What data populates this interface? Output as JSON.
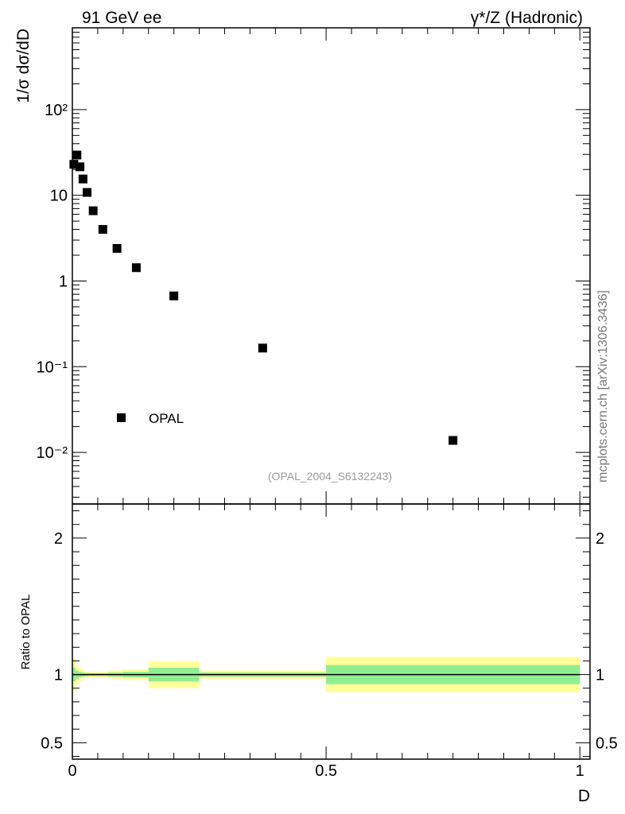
{
  "header": {
    "left_title": "91 GeV ee",
    "right_title": "γ*/Z (Hadronic)"
  },
  "side_label": "mcplots.cern.ch [arXiv:1306.3436]",
  "chart_data": {
    "type": "scatter",
    "main": {
      "ylabel": "1/σ dσ/dD",
      "yscale": "log",
      "ylim": [
        0.0025,
        900
      ],
      "xlim": [
        0,
        1.02
      ],
      "ytick_labels": [
        "10⁻²",
        "10⁻¹",
        "1",
        "10",
        "10²"
      ],
      "analysis_label": "(OPAL_2004_S6132243)",
      "series": [
        {
          "name": "OPAL",
          "marker": "square",
          "x": [
            0.003,
            0.009,
            0.015,
            0.021,
            0.029,
            0.041,
            0.06,
            0.088,
            0.126,
            0.2,
            0.375,
            0.75
          ],
          "y": [
            23.0,
            29.5,
            21.5,
            15.5,
            10.8,
            6.6,
            4.0,
            2.4,
            1.43,
            0.67,
            0.165,
            0.0138
          ]
        }
      ]
    },
    "ratio": {
      "ylabel": "Ratio to OPAL",
      "ylim": [
        0.38,
        2.25
      ],
      "yticks": [
        0.5,
        1,
        2
      ],
      "ytick_labels": [
        "0.5",
        "1",
        "2"
      ],
      "reference_line": 1,
      "bands": {
        "bins": [
          {
            "x0": 0.0,
            "x1": 0.006,
            "inner": 0.05,
            "outer": 0.12
          },
          {
            "x0": 0.006,
            "x1": 0.012,
            "inner": 0.03,
            "outer": 0.07
          },
          {
            "x0": 0.012,
            "x1": 0.018,
            "inner": 0.02,
            "outer": 0.05
          },
          {
            "x0": 0.018,
            "x1": 0.024,
            "inner": 0.015,
            "outer": 0.03
          },
          {
            "x0": 0.024,
            "x1": 0.034,
            "inner": 0.012,
            "outer": 0.025
          },
          {
            "x0": 0.034,
            "x1": 0.048,
            "inner": 0.01,
            "outer": 0.02
          },
          {
            "x0": 0.048,
            "x1": 0.07,
            "inner": 0.01,
            "outer": 0.02
          },
          {
            "x0": 0.07,
            "x1": 0.1,
            "inner": 0.015,
            "outer": 0.03
          },
          {
            "x0": 0.1,
            "x1": 0.15,
            "inner": 0.02,
            "outer": 0.04
          },
          {
            "x0": 0.15,
            "x1": 0.25,
            "inner": 0.05,
            "outer": 0.1
          },
          {
            "x0": 0.25,
            "x1": 0.5,
            "inner": 0.015,
            "outer": 0.03
          },
          {
            "x0": 0.5,
            "x1": 1.0,
            "inner": 0.07,
            "outer": 0.13
          }
        ],
        "colors": {
          "inner": "#90ee90",
          "outer": "#ffff99"
        }
      }
    },
    "xlabel": "D",
    "xtick_labels": [
      "0",
      "0.5",
      "1"
    ]
  }
}
